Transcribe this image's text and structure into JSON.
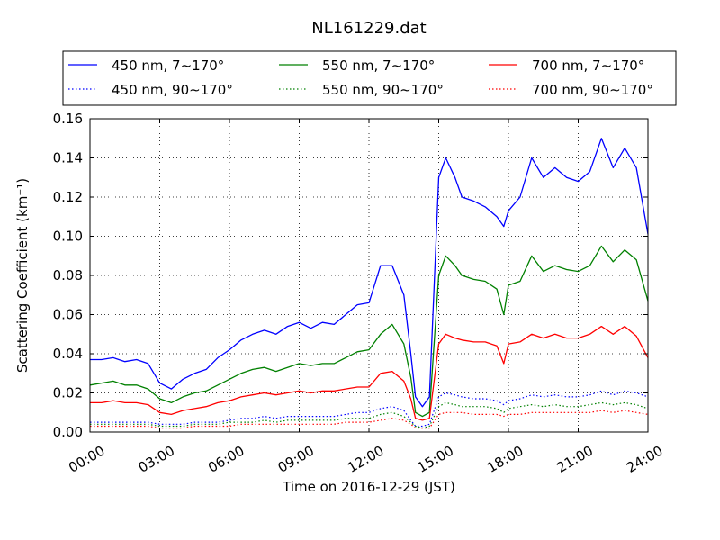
{
  "chart_data": {
    "type": "line",
    "title": "NL161229.dat",
    "xlabel": "Time on 2016-12-29 (JST)",
    "ylabel": "Scattering Coefficient (km⁻¹)",
    "xlim": [
      0,
      24
    ],
    "ylim": [
      0,
      0.16
    ],
    "grid": true,
    "legend_position": "top",
    "x_ticks": [
      "00:00",
      "03:00",
      "06:00",
      "09:00",
      "12:00",
      "15:00",
      "18:00",
      "21:00",
      "24:00"
    ],
    "y_ticks": [
      "0.00",
      "0.02",
      "0.04",
      "0.06",
      "0.08",
      "0.10",
      "0.12",
      "0.14",
      "0.16"
    ],
    "x": [
      0,
      0.5,
      1,
      1.5,
      2,
      2.5,
      3,
      3.5,
      4,
      4.5,
      5,
      5.5,
      6,
      6.5,
      7,
      7.5,
      8,
      8.5,
      9,
      9.5,
      10,
      10.5,
      11,
      11.5,
      12,
      12.5,
      13,
      13.5,
      13.8,
      14,
      14.3,
      14.6,
      15,
      15.3,
      15.7,
      16,
      16.5,
      17,
      17.5,
      17.8,
      18,
      18.5,
      19,
      19.5,
      20,
      20.5,
      21,
      21.5,
      22,
      22.5,
      23,
      23.5,
      24
    ],
    "series": [
      {
        "name": "450 nm, 7∼170°",
        "color": "#0000ff",
        "style": "solid",
        "values": [
          0.037,
          0.037,
          0.038,
          0.036,
          0.037,
          0.035,
          0.025,
          0.022,
          0.027,
          0.03,
          0.032,
          0.038,
          0.042,
          0.047,
          0.05,
          0.052,
          0.05,
          0.054,
          0.056,
          0.053,
          0.056,
          0.055,
          0.06,
          0.065,
          0.066,
          0.085,
          0.085,
          0.07,
          0.04,
          0.018,
          0.013,
          0.018,
          0.13,
          0.14,
          0.13,
          0.12,
          0.118,
          0.115,
          0.11,
          0.105,
          0.113,
          0.12,
          0.14,
          0.13,
          0.135,
          0.13,
          0.128,
          0.133,
          0.15,
          0.135,
          0.145,
          0.135,
          0.101
        ]
      },
      {
        "name": "550 nm, 7∼170°",
        "color": "#008000",
        "style": "solid",
        "values": [
          0.024,
          0.025,
          0.026,
          0.024,
          0.024,
          0.022,
          0.017,
          0.015,
          0.018,
          0.02,
          0.021,
          0.024,
          0.027,
          0.03,
          0.032,
          0.033,
          0.031,
          0.033,
          0.035,
          0.034,
          0.035,
          0.035,
          0.038,
          0.041,
          0.042,
          0.05,
          0.055,
          0.045,
          0.028,
          0.01,
          0.008,
          0.01,
          0.08,
          0.09,
          0.085,
          0.08,
          0.078,
          0.077,
          0.073,
          0.06,
          0.075,
          0.077,
          0.09,
          0.082,
          0.085,
          0.083,
          0.082,
          0.085,
          0.095,
          0.087,
          0.093,
          0.088,
          0.067
        ]
      },
      {
        "name": "700 nm, 7∼170°",
        "color": "#ff0000",
        "style": "solid",
        "values": [
          0.015,
          0.015,
          0.016,
          0.015,
          0.015,
          0.014,
          0.01,
          0.009,
          0.011,
          0.012,
          0.013,
          0.015,
          0.016,
          0.018,
          0.019,
          0.02,
          0.019,
          0.02,
          0.021,
          0.02,
          0.021,
          0.021,
          0.022,
          0.023,
          0.023,
          0.03,
          0.031,
          0.026,
          0.017,
          0.007,
          0.006,
          0.007,
          0.045,
          0.05,
          0.048,
          0.047,
          0.046,
          0.046,
          0.044,
          0.035,
          0.045,
          0.046,
          0.05,
          0.048,
          0.05,
          0.048,
          0.048,
          0.05,
          0.054,
          0.05,
          0.054,
          0.049,
          0.038
        ]
      },
      {
        "name": "450 nm, 90∼170°",
        "color": "#0000ff",
        "style": "dotted",
        "values": [
          0.005,
          0.005,
          0.005,
          0.005,
          0.005,
          0.005,
          0.004,
          0.004,
          0.004,
          0.005,
          0.005,
          0.005,
          0.006,
          0.007,
          0.007,
          0.008,
          0.007,
          0.008,
          0.008,
          0.008,
          0.008,
          0.008,
          0.009,
          0.01,
          0.01,
          0.012,
          0.013,
          0.011,
          0.006,
          0.003,
          0.003,
          0.004,
          0.018,
          0.02,
          0.019,
          0.018,
          0.017,
          0.017,
          0.016,
          0.014,
          0.016,
          0.017,
          0.019,
          0.018,
          0.019,
          0.018,
          0.018,
          0.019,
          0.021,
          0.019,
          0.021,
          0.02,
          0.018
        ]
      },
      {
        "name": "550 nm, 90∼170°",
        "color": "#008000",
        "style": "dotted",
        "values": [
          0.004,
          0.004,
          0.004,
          0.004,
          0.004,
          0.004,
          0.003,
          0.003,
          0.003,
          0.004,
          0.004,
          0.004,
          0.005,
          0.005,
          0.005,
          0.006,
          0.005,
          0.006,
          0.006,
          0.006,
          0.006,
          0.006,
          0.007,
          0.007,
          0.007,
          0.009,
          0.01,
          0.008,
          0.005,
          0.003,
          0.002,
          0.003,
          0.013,
          0.015,
          0.014,
          0.013,
          0.013,
          0.013,
          0.012,
          0.01,
          0.012,
          0.013,
          0.014,
          0.013,
          0.014,
          0.013,
          0.013,
          0.014,
          0.015,
          0.014,
          0.015,
          0.014,
          0.012
        ]
      },
      {
        "name": "700 nm, 90∼170°",
        "color": "#ff0000",
        "style": "dotted",
        "values": [
          0.003,
          0.003,
          0.003,
          0.003,
          0.003,
          0.003,
          0.002,
          0.002,
          0.002,
          0.003,
          0.003,
          0.003,
          0.003,
          0.004,
          0.004,
          0.004,
          0.004,
          0.004,
          0.004,
          0.004,
          0.004,
          0.004,
          0.005,
          0.005,
          0.005,
          0.006,
          0.007,
          0.006,
          0.004,
          0.002,
          0.002,
          0.002,
          0.009,
          0.01,
          0.01,
          0.01,
          0.009,
          0.009,
          0.009,
          0.008,
          0.009,
          0.009,
          0.01,
          0.01,
          0.01,
          0.01,
          0.01,
          0.01,
          0.011,
          0.01,
          0.011,
          0.01,
          0.009
        ]
      }
    ]
  }
}
